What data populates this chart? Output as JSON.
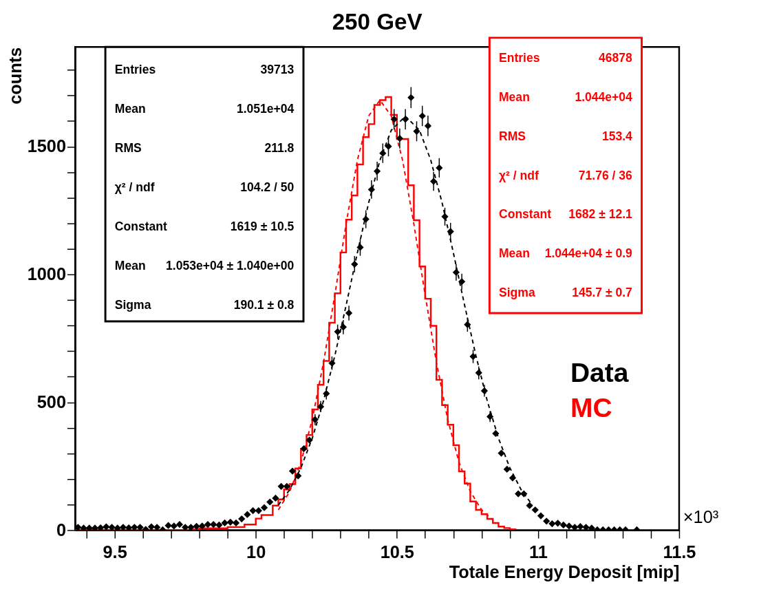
{
  "chart_data": {
    "type": "step",
    "title": "250 GeV",
    "xlabel": "Totale Energy Deposit [mip]",
    "ylabel": "counts",
    "xlim": [
      9.36,
      11.5
    ],
    "ylim": [
      0,
      1890
    ],
    "xticks": [
      {
        "value": 9.4,
        "label": null
      },
      9.5,
      {
        "value": 9.6,
        "label": null
      },
      {
        "value": 9.7,
        "label": null
      },
      {
        "value": 9.8,
        "label": null
      },
      {
        "value": 9.9,
        "label": null
      },
      10,
      {
        "value": 10.1,
        "label": null
      },
      {
        "value": 10.2,
        "label": null
      },
      {
        "value": 10.3,
        "label": null
      },
      {
        "value": 10.4,
        "label": null
      },
      10.5,
      {
        "value": 10.6,
        "label": null
      },
      {
        "value": 10.7,
        "label": null
      },
      {
        "value": 10.8,
        "label": null
      },
      {
        "value": 10.9,
        "label": null
      },
      11,
      {
        "value": 11.1,
        "label": null
      },
      {
        "value": 11.2,
        "label": null
      },
      {
        "value": 11.3,
        "label": null
      },
      {
        "value": 11.4,
        "label": null
      },
      11.5
    ],
    "yticks": [
      0,
      {
        "value": 100,
        "label": null
      },
      {
        "value": 200,
        "label": null
      },
      {
        "value": 300,
        "label": null
      },
      {
        "value": 400,
        "label": null
      },
      500,
      {
        "value": 600,
        "label": null
      },
      {
        "value": 700,
        "label": null
      },
      {
        "value": 800,
        "label": null
      },
      {
        "value": 900,
        "label": null
      },
      1000,
      {
        "value": 1100,
        "label": null
      },
      {
        "value": 1200,
        "label": null
      },
      {
        "value": 1300,
        "label": null
      },
      {
        "value": 1400,
        "label": null
      },
      1500,
      {
        "value": 1600,
        "label": null
      },
      {
        "value": 1700,
        "label": null
      },
      {
        "value": 1800,
        "label": null
      }
    ],
    "series": [
      {
        "name": "MC",
        "color": "#ff0000",
        "x": [
          9.36,
          9.78,
          9.8,
          9.9,
          9.96,
          10.0,
          10.02,
          10.06,
          10.08,
          10.1,
          10.12,
          10.14,
          10.16,
          10.18,
          10.2,
          10.22,
          10.24,
          10.26,
          10.28,
          10.3,
          10.32,
          10.34,
          10.36,
          10.38,
          10.4,
          10.42,
          10.44,
          10.46,
          10.48,
          10.5,
          10.54,
          10.56,
          10.58,
          10.6,
          10.62,
          10.64,
          10.66,
          10.68,
          10.7,
          10.72,
          10.74,
          10.76,
          10.78,
          10.8,
          10.82,
          10.84,
          10.86,
          10.88,
          10.9,
          10.92
        ],
        "values": [
          0,
          3,
          7,
          12,
          22,
          45,
          59,
          96,
          120,
          159,
          180,
          241,
          318,
          372,
          472,
          568,
          662,
          811,
          926,
          1086,
          1214,
          1309,
          1430,
          1537,
          1588,
          1663,
          1682,
          1694,
          1624,
          1530,
          1349,
          1212,
          1031,
          905,
          799,
          588,
          489,
          412,
          332,
          230,
          182,
          112,
          79,
          62,
          44,
          28,
          14,
          8,
          3,
          0
        ]
      },
      {
        "type": "line",
        "color": "#ff0000",
        "line_style": "dashed",
        "x": [
          10.08,
          10.12,
          10.16,
          10.2,
          10.24,
          10.28,
          10.32,
          10.36,
          10.4,
          10.44,
          10.48,
          10.52,
          10.56,
          10.6,
          10.64,
          10.68,
          10.72,
          10.76,
          10.8,
          10.84
        ],
        "values": [
          79,
          151,
          265,
          433,
          656,
          920,
          1198,
          1447,
          1620,
          1682,
          1620,
          1447,
          1198,
          920,
          656,
          433,
          265,
          151,
          79,
          39
        ]
      },
      {
        "type": "line",
        "color": "#000000",
        "line_style": "dashed",
        "x": [
          10.08,
          10.12,
          10.16,
          10.2,
          10.24,
          10.28,
          10.32,
          10.36,
          10.4,
          10.44,
          10.48,
          10.53,
          10.58,
          10.62,
          10.66,
          10.7,
          10.74,
          10.78,
          10.82,
          10.86,
          10.9,
          10.94,
          10.98
        ],
        "values": [
          98,
          158,
          244,
          359,
          506,
          682,
          879,
          1085,
          1281,
          1447,
          1564,
          1619,
          1564,
          1447,
          1281,
          1085,
          879,
          682,
          506,
          359,
          244,
          158,
          98
        ]
      },
      {
        "name": "Data",
        "type": "scatter",
        "color": "#000000",
        "marker": "diamond",
        "x": [
          9.37,
          9.39,
          9.41,
          9.43,
          9.45,
          9.47,
          9.49,
          9.51,
          9.53,
          9.55,
          9.57,
          9.59,
          9.61,
          9.63,
          9.65,
          9.67,
          9.69,
          9.71,
          9.73,
          9.75,
          9.77,
          9.79,
          9.81,
          9.83,
          9.85,
          9.87,
          9.89,
          9.91,
          9.93,
          9.95,
          9.97,
          9.99,
          10.01,
          10.03,
          10.05,
          10.07,
          10.09,
          10.11,
          10.13,
          10.15,
          10.17,
          10.19,
          10.21,
          10.23,
          10.25,
          10.27,
          10.29,
          10.31,
          10.33,
          10.35,
          10.37,
          10.39,
          10.41,
          10.43,
          10.45,
          10.47,
          10.49,
          10.51,
          10.53,
          10.55,
          10.57,
          10.59,
          10.61,
          10.63,
          10.65,
          10.67,
          10.69,
          10.71,
          10.73,
          10.75,
          10.77,
          10.79,
          10.81,
          10.83,
          10.85,
          10.87,
          10.89,
          10.91,
          10.93,
          10.95,
          10.97,
          10.99,
          11.01,
          11.03,
          11.05,
          11.07,
          11.09,
          11.11,
          11.13,
          11.15,
          11.17,
          11.19,
          11.21,
          11.23,
          11.25,
          11.27,
          11.29,
          11.31,
          11.33,
          11.35
        ],
        "values": [
          11,
          8,
          8,
          8,
          9,
          13,
          11,
          8,
          11,
          9,
          11,
          11,
          3,
          13,
          11,
          1,
          18,
          16,
          22,
          11,
          11,
          15,
          16,
          22,
          22,
          20,
          28,
          31,
          28,
          44,
          61,
          76,
          76,
          88,
          110,
          125,
          171,
          171,
          231,
          212,
          318,
          352,
          432,
          483,
          534,
          653,
          776,
          794,
          849,
          1040,
          1106,
          1216,
          1332,
          1404,
          1474,
          1501,
          1607,
          1532,
          1607,
          1692,
          1560,
          1620,
          1581,
          1364,
          1417,
          1226,
          1168,
          1008,
          972,
          804,
          679,
          615,
          545,
          444,
          378,
          301,
          238,
          204,
          142,
          142,
          96,
          79,
          56,
          35,
          25,
          27,
          20,
          16,
          11,
          14,
          11,
          8,
          1,
          1,
          1,
          1,
          1,
          1,
          null,
          1
        ],
        "errors": [
          null,
          null,
          null,
          null,
          null,
          null,
          null,
          null,
          null,
          null,
          null,
          null,
          null,
          null,
          null,
          null,
          null,
          null,
          null,
          null,
          null,
          null,
          null,
          null,
          null,
          null,
          null,
          null,
          null,
          null,
          null,
          null,
          null,
          null,
          null,
          null,
          null,
          null,
          null,
          null,
          null,
          null,
          21,
          22,
          23,
          26,
          28,
          28,
          29,
          32,
          33,
          35,
          36,
          37,
          38,
          39,
          40,
          39,
          40,
          41,
          39,
          40,
          40,
          37,
          38,
          35,
          34,
          32,
          31,
          28,
          26,
          25,
          23,
          21,
          null,
          null,
          null,
          null,
          null,
          null,
          null,
          null,
          null,
          null,
          null,
          null,
          null,
          null,
          null,
          null,
          null,
          null,
          null,
          null,
          null,
          null,
          null,
          null,
          null,
          null
        ]
      }
    ],
    "annotations": [
      "Entries",
      "39713",
      "Mean",
      "1.051e+04",
      "RMS",
      "211.8",
      "χ² / ndf",
      "104.2 / 50",
      "Constant",
      "1619 ± 10.5",
      "Mean",
      "1.053e+04 ± 1.040e+00",
      "Sigma",
      "190.1 ± 0.8",
      "Entries",
      "46878",
      "Mean",
      "1.044e+04",
      "RMS",
      "153.4",
      "χ² / ndf",
      "71.76 / 36",
      "Constant",
      "1682 ± 12.1",
      "Mean",
      "1.044e+04 ± 0.9",
      "Sigma",
      "145.7 ± 0.7",
      "×10³"
    ]
  }
}
